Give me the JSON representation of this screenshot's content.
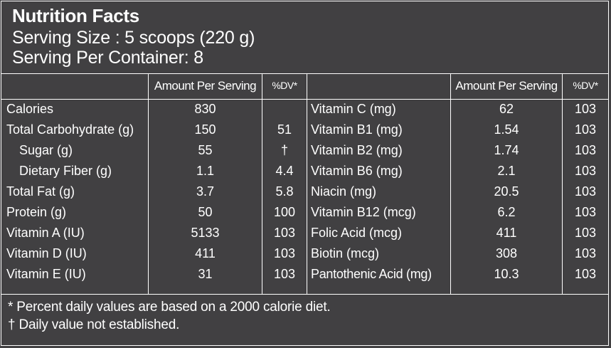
{
  "header": {
    "title": "Nutrition Facts",
    "serving_size": "Serving Size :  5 scoops (220 g)",
    "servings_per_container": "Serving Per Container: 8"
  },
  "columns": {
    "amount_header": "Amount Per Serving",
    "dv_header": "%DV*"
  },
  "left_rows": [
    {
      "name": "Calories",
      "amount": "830",
      "dv": ""
    },
    {
      "name": "Total Carbohydrate (g)",
      "amount": "150",
      "dv": "51"
    },
    {
      "name": "Sugar (g)",
      "amount": "55",
      "dv": "†"
    },
    {
      "name": "Dietary Fiber (g)",
      "amount": "1.1",
      "dv": "4.4"
    },
    {
      "name": "Total Fat (g)",
      "amount": "3.7",
      "dv": "5.8"
    },
    {
      "name": "Protein (g)",
      "amount": "50",
      "dv": "100"
    },
    {
      "name": "Vitamin A (IU)",
      "amount": "5133",
      "dv": "103"
    },
    {
      "name": "Vitamin D (IU)",
      "amount": "411",
      "dv": "103"
    },
    {
      "name": "Vitamin E (IU)",
      "amount": "31",
      "dv": "103"
    }
  ],
  "right_rows": [
    {
      "name": "Vitamin C (mg)",
      "amount": "62",
      "dv": "103"
    },
    {
      "name": "Vitamin B1 (mg)",
      "amount": "1.54",
      "dv": "103"
    },
    {
      "name": "Vitamin B2 (mg)",
      "amount": "1.74",
      "dv": "103"
    },
    {
      "name": "Vitamin B6 (mg)",
      "amount": "2.1",
      "dv": "103"
    },
    {
      "name": "Niacin (mg)",
      "amount": "20.5",
      "dv": "103"
    },
    {
      "name": "Vitamin B12 (mcg)",
      "amount": "6.2",
      "dv": "103"
    },
    {
      "name": "Folic Acid (mcg)",
      "amount": "411",
      "dv": "103"
    },
    {
      "name": "Biotin (mcg)",
      "amount": "308",
      "dv": "103"
    },
    {
      "name": "Pantothenic Acid (mg)",
      "amount": "10.3",
      "dv": "103"
    }
  ],
  "footer": {
    "note_percent": "* Percent daily values are based on a 2000 calorie diet.",
    "note_dagger": "† Daily value not established."
  },
  "colors": {
    "background": "#414042",
    "text": "#ffffff"
  }
}
